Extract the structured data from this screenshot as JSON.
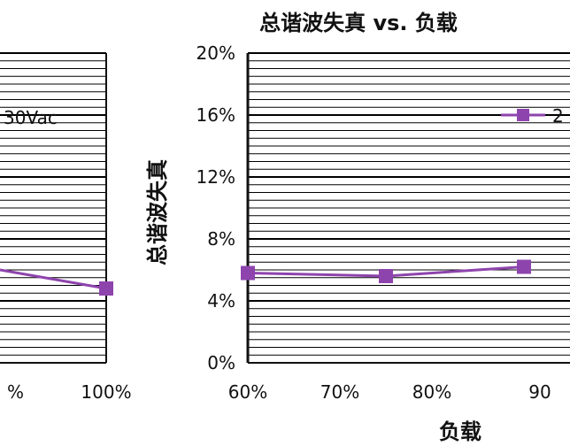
{
  "chart_data": [
    {
      "type": "line",
      "panel": "left-partial",
      "title": "",
      "xlabel": "",
      "ylabel": "",
      "x_ticks": [
        "%",
        "100%"
      ],
      "legend": [
        "30Vac"
      ],
      "series": [
        {
          "name": "30Vac",
          "points": [
            {
              "x": "75%",
              "y": 6.0
            },
            {
              "x": "100%",
              "y": 4.8
            }
          ]
        }
      ],
      "ylim": [
        0,
        20
      ],
      "grid": true,
      "legend_position": "top-right"
    },
    {
      "type": "line",
      "panel": "right",
      "title": "总谐波失真 vs. 负载",
      "xlabel": "负载",
      "ylabel": "总谐波失真",
      "y_ticks": [
        "0%",
        "4%",
        "8%",
        "12%",
        "16%",
        "20%"
      ],
      "x_ticks": [
        "60%",
        "70%",
        "80%",
        "90"
      ],
      "legend": [
        "2"
      ],
      "series": [
        {
          "name": "2",
          "points": [
            {
              "x": "60%",
              "y": 5.8
            },
            {
              "x": "75%",
              "y": 5.6
            },
            {
              "x": "90%",
              "y": 6.2
            }
          ]
        }
      ],
      "ylim": [
        0,
        20
      ],
      "grid": true,
      "legend_position": "top-right"
    }
  ],
  "colors": {
    "series": "#8e44ad",
    "background": "#ffffff",
    "gridline": "#000000",
    "axis": "#111111"
  }
}
